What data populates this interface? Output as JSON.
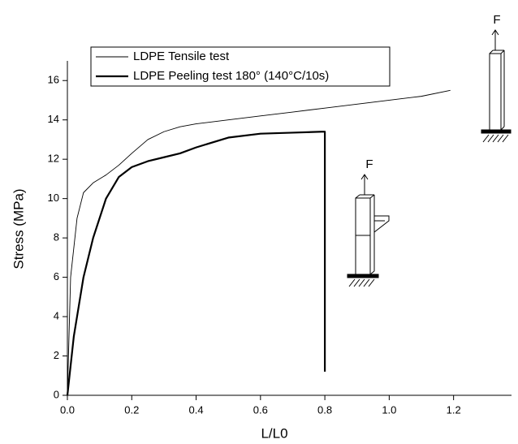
{
  "chart_data": {
    "type": "line",
    "xlabel": "L/L0",
    "ylabel": "Stress (MPa)",
    "xlim": [
      0,
      1.38
    ],
    "ylim": [
      0,
      17
    ],
    "xticks": [
      {
        "value": 0,
        "label": "0.0"
      },
      0.2,
      0.4,
      0.6,
      0.8,
      {
        "value": 1,
        "label": "1.0"
      },
      1.2
    ],
    "yticks": [
      0,
      2,
      4,
      6,
      8,
      10,
      12,
      14,
      16
    ],
    "legend": "upper left",
    "annotations": [
      "F",
      "F"
    ],
    "series": [
      {
        "name": "LDPE Tensile test",
        "color": "#000000",
        "width": 0.9,
        "x": [
          0,
          0.01,
          0.03,
          0.05,
          0.08,
          0.12,
          0.16,
          0.2,
          0.25,
          0.3,
          0.35,
          0.4,
          0.5,
          0.6,
          0.7,
          0.8,
          0.9,
          1.0,
          1.1,
          1.19
        ],
        "values": [
          0,
          6,
          9,
          10.3,
          10.8,
          11.2,
          11.7,
          12.3,
          13,
          13.4,
          13.65,
          13.8,
          14,
          14.2,
          14.4,
          14.6,
          14.8,
          15,
          15.2,
          15.5
        ]
      },
      {
        "name": "LDPE Peeling test 180° (140°C/10s)",
        "color": "#000000",
        "width": 2.2,
        "x": [
          0,
          0.02,
          0.05,
          0.08,
          0.12,
          0.16,
          0.2,
          0.25,
          0.3,
          0.35,
          0.4,
          0.5,
          0.6,
          0.7,
          0.79,
          0.8,
          0.8
        ],
        "values": [
          0,
          3,
          6,
          8,
          10,
          11.1,
          11.6,
          11.9,
          12.1,
          12.3,
          12.6,
          13.1,
          13.3,
          13.35,
          13.4,
          13.4,
          1.2
        ]
      }
    ]
  }
}
